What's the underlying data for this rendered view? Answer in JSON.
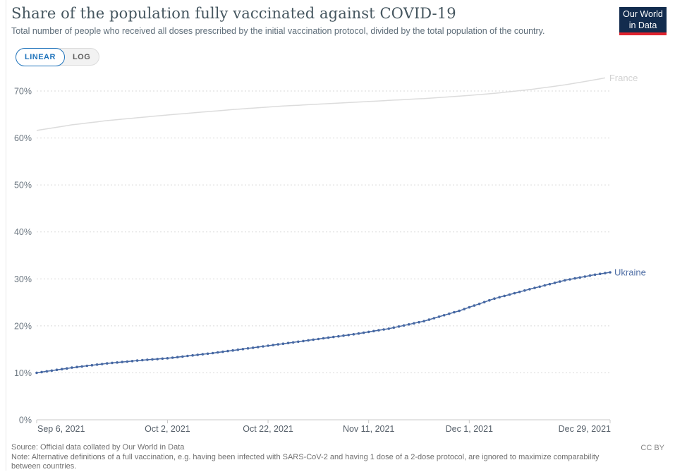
{
  "header": {
    "logo": {
      "line1": "Our World",
      "line2": "in Data"
    }
  },
  "controls": {
    "linear_label": "LINEAR",
    "log_label": "LOG"
  },
  "chart_data": {
    "type": "line",
    "title": "Share of the population fully vaccinated against COVID-19",
    "subtitle": "Total number of people who received all doses prescribed by the initial vaccination protocol, divided by the total population of the country.",
    "y_unit": "%",
    "y_ticks": [
      0,
      10,
      20,
      30,
      40,
      50,
      60,
      70
    ],
    "ylim": [
      0,
      70
    ],
    "grid": "dashed-horizontal",
    "legend_position": "end-of-line-labels",
    "start_date": "2021-09-06",
    "x_tick_labels": [
      "Sep 6, 2021",
      "Oct 2, 2021",
      "Oct 22, 2021",
      "Nov 11, 2021",
      "Dec 1, 2021",
      "Dec 29, 2021"
    ],
    "x_tick_days": [
      0,
      26,
      46,
      66,
      86,
      114
    ],
    "x_range_days": [
      0,
      114
    ],
    "colors": {
      "grid": "#dadada",
      "axis": "#c8c8c8",
      "y_tick_label": "#6b7680",
      "x_tick_label": "#555f69"
    },
    "series": [
      {
        "name": "France",
        "color": "#dcdcdc",
        "label_color": "#d2d2d2",
        "markers": "none",
        "points": [
          {
            "day": 0,
            "value": 61.6
          },
          {
            "day": 7,
            "value": 62.8
          },
          {
            "day": 14,
            "value": 63.7
          },
          {
            "day": 21,
            "value": 64.4
          },
          {
            "day": 26,
            "value": 64.9
          },
          {
            "day": 35,
            "value": 65.7
          },
          {
            "day": 42,
            "value": 66.3
          },
          {
            "day": 49,
            "value": 66.8
          },
          {
            "day": 56,
            "value": 67.2
          },
          {
            "day": 63,
            "value": 67.6
          },
          {
            "day": 70,
            "value": 68.0
          },
          {
            "day": 77,
            "value": 68.4
          },
          {
            "day": 84,
            "value": 68.9
          },
          {
            "day": 91,
            "value": 69.5
          },
          {
            "day": 98,
            "value": 70.3
          },
          {
            "day": 105,
            "value": 71.3
          },
          {
            "day": 111,
            "value": 72.4
          },
          {
            "day": 113,
            "value": 72.8
          }
        ]
      },
      {
        "name": "Ukraine",
        "color": "#4668a3",
        "label_color": "#5170a6",
        "markers": "daily",
        "points": [
          {
            "day": 0,
            "value": 10.0
          },
          {
            "day": 7,
            "value": 11.1
          },
          {
            "day": 14,
            "value": 12.0
          },
          {
            "day": 21,
            "value": 12.7
          },
          {
            "day": 26,
            "value": 13.1
          },
          {
            "day": 35,
            "value": 14.2
          },
          {
            "day": 42,
            "value": 15.2
          },
          {
            "day": 49,
            "value": 16.2
          },
          {
            "day": 56,
            "value": 17.2
          },
          {
            "day": 63,
            "value": 18.2
          },
          {
            "day": 70,
            "value": 19.4
          },
          {
            "day": 77,
            "value": 21.0
          },
          {
            "day": 84,
            "value": 23.2
          },
          {
            "day": 91,
            "value": 25.8
          },
          {
            "day": 98,
            "value": 27.8
          },
          {
            "day": 105,
            "value": 29.7
          },
          {
            "day": 111,
            "value": 30.9
          },
          {
            "day": 114,
            "value": 31.4
          }
        ]
      }
    ]
  },
  "footer": {
    "source": "Source: Official data collated by Our World in Data",
    "note": "Note: Alternative definitions of a full vaccination, e.g. having been infected with SARS-CoV-2 and having 1 dose of a 2-dose protocol, are ignored to maximize comparability between countries.",
    "license": "CC BY"
  }
}
